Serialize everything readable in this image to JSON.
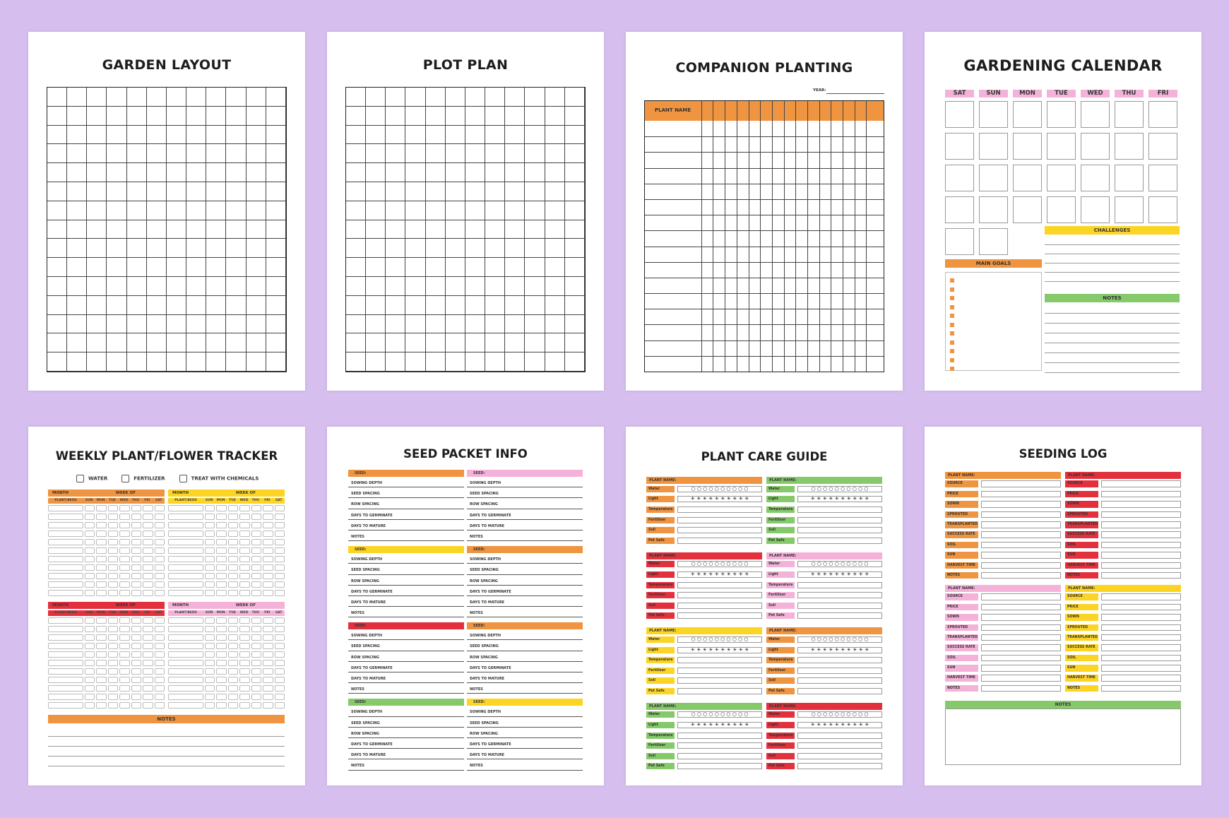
{
  "pages": {
    "garden_layout": {
      "title": "GARDEN LAYOUT"
    },
    "plot_plan": {
      "title": "PLOT PLAN"
    },
    "companion_planting": {
      "title": "COMPANION PLANTING",
      "year_label": "YEAR:",
      "plant_name_label": "PLANT NAME"
    },
    "gardening_calendar": {
      "title": "GARDENING CALENDAR",
      "days": [
        "SAT",
        "SUN",
        "MON",
        "TUE",
        "WED",
        "THU",
        "FRI"
      ],
      "challenges_label": "CHALLENGES",
      "main_goals_label": "MAIN GOALS",
      "notes_label": "NOTES"
    },
    "weekly_tracker": {
      "title": "WEEKLY PLANT/FLOWER TRACKER",
      "checks": [
        "WATER",
        "FERTILIZER",
        "TREAT WITH CHEMICALS"
      ],
      "month_label": "MONTH",
      "week_label": "WEEK OF",
      "plant_bed_label": "PLANT/BEDS",
      "days": [
        "SUN",
        "MON",
        "TUE",
        "WED",
        "THU",
        "FRI",
        "SAT"
      ],
      "notes_label": "NOTES"
    },
    "seed_packet": {
      "title": "SEED PACKET INFO",
      "seed_label": "SEED:",
      "fields": [
        "SOWING DEPTH",
        "SEED SPACING",
        "ROW SPACING",
        "DAYS TO GERMINATE",
        "DAYS TO MATURE",
        "NOTES"
      ]
    },
    "plant_care": {
      "title": "PLANT CARE GUIDE",
      "plant_name_label": "PLANT NAME:",
      "fields": [
        "Water",
        "Light",
        "Temperature",
        "Fertilizer",
        "Soil",
        "Pet Safe"
      ],
      "water_icons": "○ ○ ○ ○ ○ ○ ○ ○ ○ ○",
      "light_icons": "☀ ☀ ☀ ☀ ☀ ☀ ☀ ☀ ☀ ☀"
    },
    "seeding_log": {
      "title": "SEEDING LOG",
      "plant_name_label": "PLANT NAME:",
      "fields": [
        "SOURCE",
        "PRICE",
        "SOWN",
        "SPROUTED",
        "TRANSPLANTED",
        "SUCCESS RATE",
        "SOIL",
        "SUN",
        "HARVEST TIME",
        "NOTES"
      ],
      "notes_label": "NOTES"
    }
  },
  "colors": {
    "background": "#d6bfee",
    "orange": "#ef9440",
    "yellow": "#fcd424",
    "red": "#e2303c",
    "pink": "#f5b2d8",
    "green": "#86c96a"
  }
}
